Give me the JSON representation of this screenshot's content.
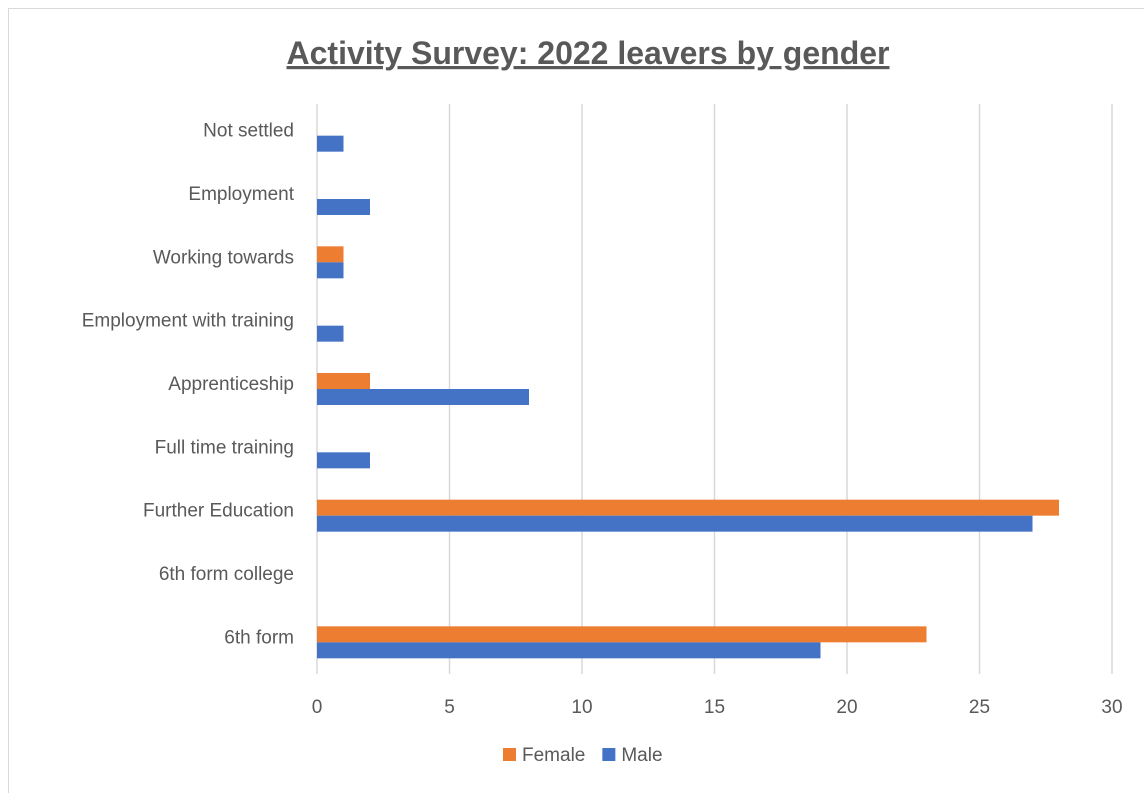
{
  "chart_data": {
    "type": "bar",
    "orientation": "horizontal",
    "title": "Activity Survey: 2022 leavers by gender",
    "categories": [
      "Not settled",
      "Employment",
      "Working towards",
      "Employment with training",
      "Apprenticeship",
      "Full time training",
      "Further Education",
      "6th form college",
      "6th form"
    ],
    "series": [
      {
        "name": "Female",
        "color": "#ED7D31",
        "values": [
          0,
          0,
          1,
          0,
          2,
          0,
          28,
          0,
          23
        ]
      },
      {
        "name": "Male",
        "color": "#4472C4",
        "values": [
          1,
          2,
          1,
          1,
          8,
          2,
          27,
          0,
          19
        ]
      }
    ],
    "xlim": [
      0,
      30
    ],
    "xticks": [
      "0",
      "5",
      "10",
      "15",
      "20",
      "25",
      "30"
    ],
    "grid": true,
    "legend_position": "bottom"
  }
}
